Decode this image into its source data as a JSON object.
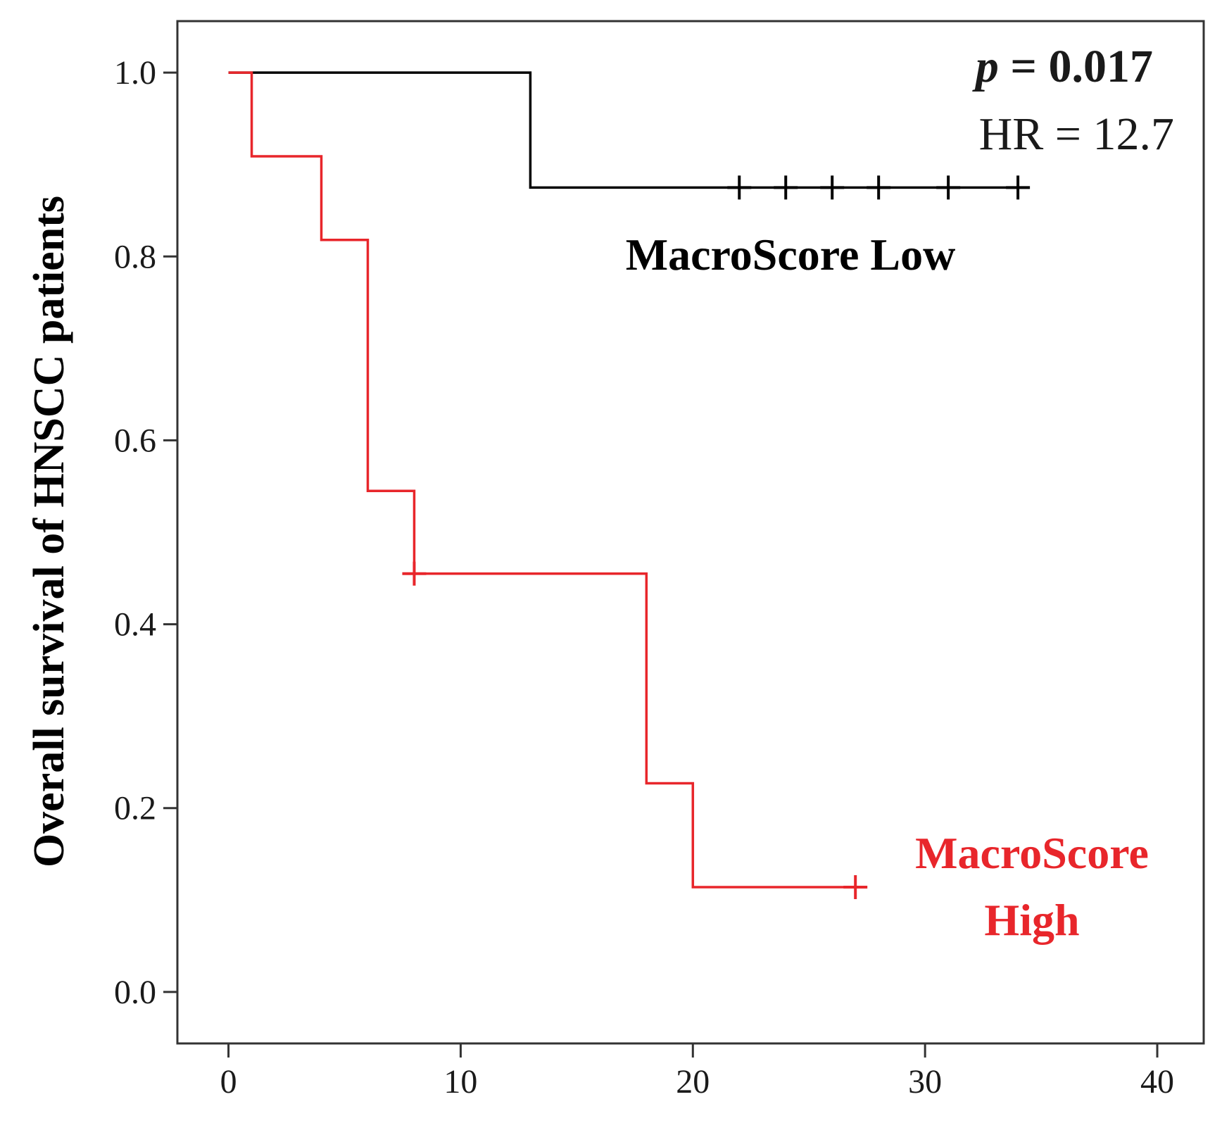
{
  "chart_data": {
    "type": "line",
    "subtype": "kaplan-meier",
    "title": "",
    "xlabel": "",
    "ylabel": "Overall survival of HNSCC patients",
    "xlim": [
      -2.2,
      42.0
    ],
    "ylim": [
      -0.056,
      1.056
    ],
    "x_ticks": [
      0,
      10,
      20,
      30,
      40
    ],
    "y_ticks": [
      0.0,
      0.2,
      0.4,
      0.6,
      0.8,
      1.0
    ],
    "x_tick_labels": [
      "0",
      "10",
      "20",
      "30",
      "40"
    ],
    "y_tick_labels": [
      "0.0",
      "0.2",
      "0.4",
      "0.6",
      "0.8",
      "1.0"
    ],
    "grid": false,
    "legend": "none",
    "annotations": {
      "p_label": "p",
      "p_value": " = 0.017",
      "hr": "HR = 12.7"
    },
    "series": [
      {
        "name": "MacroScore Low",
        "label_lines": [
          "MacroScore Low"
        ],
        "color": "#000000",
        "steps": [
          [
            0,
            1.0
          ],
          [
            13,
            0.875
          ],
          [
            34.5,
            0.875
          ]
        ],
        "censors": [
          22,
          24,
          26,
          28,
          31,
          34
        ]
      },
      {
        "name": "MacroScore High",
        "label_lines": [
          "MacroScore",
          "High"
        ],
        "color": "#e8262b",
        "steps": [
          [
            0,
            1.0
          ],
          [
            1,
            0.909
          ],
          [
            4,
            0.818
          ],
          [
            6,
            0.545
          ],
          [
            8,
            0.455
          ],
          [
            18,
            0.227
          ],
          [
            20,
            0.114
          ],
          [
            27.5,
            0.114
          ]
        ],
        "censors": [
          8,
          27
        ]
      }
    ]
  }
}
